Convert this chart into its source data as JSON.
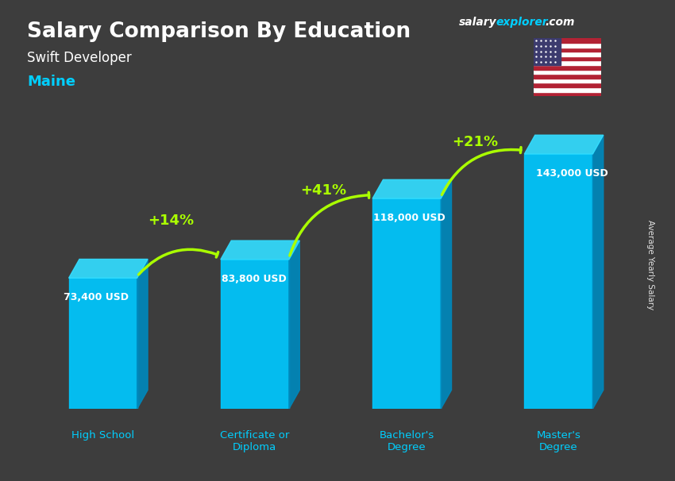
{
  "title_main": "Salary Comparison By Education",
  "title_sub": "Swift Developer",
  "title_location": "Maine",
  "categories": [
    "High School",
    "Certificate or\nDiploma",
    "Bachelor's\nDegree",
    "Master's\nDegree"
  ],
  "values": [
    73400,
    83800,
    118000,
    143000
  ],
  "value_labels": [
    "73,400 USD",
    "83,800 USD",
    "118,000 USD",
    "143,000 USD"
  ],
  "pct_labels": [
    "+14%",
    "+41%",
    "+21%"
  ],
  "bar_color_top": "#00BFFF",
  "bar_color_bottom": "#0080C0",
  "background_color": "#1a1a2e",
  "text_color_white": "#ffffff",
  "text_color_cyan": "#00CFFF",
  "text_color_green": "#AAFF00",
  "ylabel": "Average Yearly Salary",
  "watermark": "salaryexplorer.com",
  "ylim": [
    0,
    170000
  ]
}
